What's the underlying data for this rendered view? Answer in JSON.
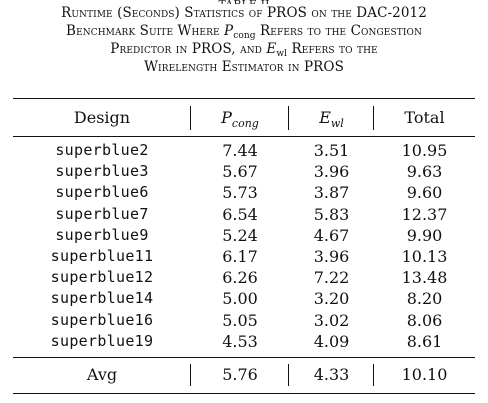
{
  "caption": {
    "cut_line": "TABLE II",
    "line1": "Runtime (Seconds) Statistics of PROS on the DAC-2012",
    "line2_a": "Benchmark Suite Where ",
    "line2_sym": "P",
    "line2_sub": "cong",
    "line2_b": " Refers to the Congestion",
    "line3_a": "Predictor in PROS, and ",
    "line3_sym": "E",
    "line3_sub": "wl",
    "line3_b": " Refers to the",
    "line4": "Wirelength Estimator in PROS"
  },
  "table": {
    "headers": {
      "design": "Design",
      "pcong_sym": "P",
      "pcong_sub": "cong",
      "ewl_sym": "E",
      "ewl_sub": "wl",
      "total": "Total"
    },
    "rows": [
      {
        "design": "superblue2",
        "pcong": "7.44",
        "ewl": "3.51",
        "total": "10.95"
      },
      {
        "design": "superblue3",
        "pcong": "5.67",
        "ewl": "3.96",
        "total": "9.63"
      },
      {
        "design": "superblue6",
        "pcong": "5.73",
        "ewl": "3.87",
        "total": "9.60"
      },
      {
        "design": "superblue7",
        "pcong": "6.54",
        "ewl": "5.83",
        "total": "12.37"
      },
      {
        "design": "superblue9",
        "pcong": "5.24",
        "ewl": "4.67",
        "total": "9.90"
      },
      {
        "design": "superblue11",
        "pcong": "6.17",
        "ewl": "3.96",
        "total": "10.13"
      },
      {
        "design": "superblue12",
        "pcong": "6.26",
        "ewl": "7.22",
        "total": "13.48"
      },
      {
        "design": "superblue14",
        "pcong": "5.00",
        "ewl": "3.20",
        "total": "8.20"
      },
      {
        "design": "superblue16",
        "pcong": "5.05",
        "ewl": "3.02",
        "total": "8.06"
      },
      {
        "design": "superblue19",
        "pcong": "4.53",
        "ewl": "4.09",
        "total": "8.61"
      }
    ],
    "avg": {
      "design": "Avg",
      "pcong": "5.76",
      "ewl": "4.33",
      "total": "10.10"
    }
  }
}
